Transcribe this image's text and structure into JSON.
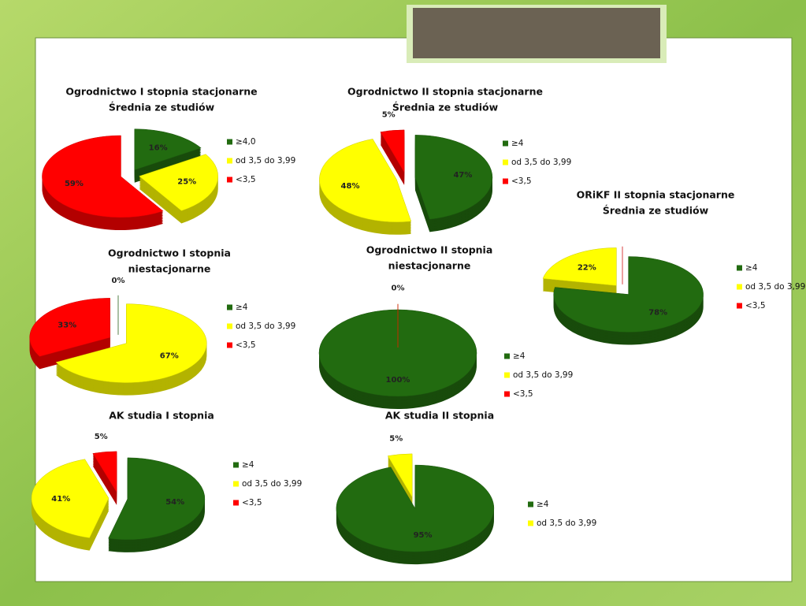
{
  "chart_data": [
    {
      "type": "pie",
      "title": [
        "Ogrodnictwo I stopnia stacjonarne",
        "Średnia ze studiów"
      ],
      "categories": [
        "≥4,0",
        "od 3,5 do 3,99",
        "<3,5"
      ],
      "values": [
        16,
        25,
        59
      ],
      "value_labels": [
        "16%",
        "25%",
        "59%"
      ],
      "colors": [
        "#226b10",
        "#ffff00",
        "#ff0000"
      ]
    },
    {
      "type": "pie",
      "title": [
        "Ogrodnictwo II stopnia stacjonarne",
        "Średnia ze studiów"
      ],
      "categories": [
        "≥4",
        "od 3,5 do 3,99",
        "<3,5"
      ],
      "values": [
        47,
        48,
        5
      ],
      "value_labels": [
        "47%",
        "48%",
        "5%"
      ],
      "colors": [
        "#226b10",
        "#ffff00",
        "#ff0000"
      ]
    },
    {
      "type": "pie",
      "title": [
        "ORiKF II stopnia stacjonarne",
        "Średnia ze studiów"
      ],
      "categories": [
        "≥4",
        "od 3,5 do 3,99",
        "<3,5"
      ],
      "values": [
        78,
        22,
        0
      ],
      "value_labels": [
        "78%",
        "22%",
        null
      ],
      "colors": [
        "#226b10",
        "#ffff00",
        "#ff0000"
      ]
    },
    {
      "type": "pie",
      "title": [
        "Ogrodnictwo I stopnia",
        "niestacjonarne"
      ],
      "categories": [
        "≥4",
        "od 3,5 do 3,99",
        "<3,5"
      ],
      "values": [
        0,
        67,
        33
      ],
      "value_labels": [
        "0%",
        "67%",
        "33%"
      ],
      "colors": [
        "#226b10",
        "#ffff00",
        "#ff0000"
      ]
    },
    {
      "type": "pie",
      "title": [
        "Ogrodnictwo II stopnia",
        "niestacjonarne"
      ],
      "categories": [
        "≥4",
        "od 3,5 do 3,99",
        "<3,5"
      ],
      "values": [
        100,
        0,
        0
      ],
      "value_labels": [
        "100%",
        "0%",
        null
      ],
      "colors": [
        "#226b10",
        "#ffff00",
        "#ff0000"
      ]
    },
    {
      "type": "pie",
      "title": [
        "AK studia I stopnia"
      ],
      "categories": [
        "≥4",
        "od 3,5 do 3,99",
        "<3,5"
      ],
      "values": [
        54,
        41,
        5
      ],
      "value_labels": [
        "54%",
        "41%",
        "5%"
      ],
      "colors": [
        "#226b10",
        "#ffff00",
        "#ff0000"
      ]
    },
    {
      "type": "pie",
      "title": [
        "AK studia II stopnia"
      ],
      "categories": [
        "≥4",
        "od 3,5 do 3,99"
      ],
      "values": [
        95,
        5
      ],
      "value_labels": [
        "95%",
        "5%"
      ],
      "colors": [
        "#226b10",
        "#ffff00"
      ]
    }
  ]
}
